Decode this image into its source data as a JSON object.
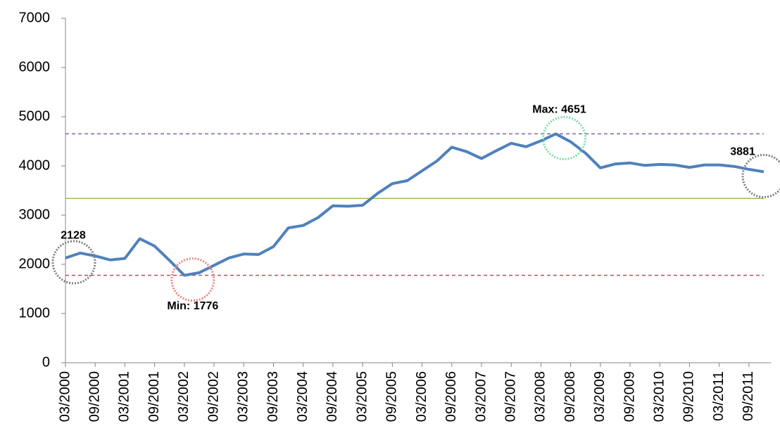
{
  "chart_data": {
    "type": "line",
    "categories": [
      "03/2000",
      null,
      "09/2000",
      null,
      "03/2001",
      null,
      "09/2001",
      null,
      "03/2002",
      null,
      "09/2002",
      null,
      "03/2003",
      null,
      "09/2003",
      null,
      "03/2004",
      null,
      "09/2004",
      null,
      "03/2005",
      null,
      "09/2005",
      null,
      "03/2006",
      null,
      "09/2006",
      null,
      "03/2007",
      null,
      "09/2007",
      null,
      "03/2008",
      null,
      "09/2008",
      null,
      "03/2009",
      null,
      "09/2009",
      null,
      "03/2010",
      null,
      "09/2010",
      null,
      "03/2011",
      null,
      "09/2011",
      null
    ],
    "series": [
      {
        "color": "#4f81bd",
        "values": [
          2128,
          2230,
          2170,
          2090,
          2120,
          2520,
          2370,
          2080,
          1776,
          1830,
          1980,
          2130,
          2210,
          2200,
          2360,
          2740,
          2790,
          2950,
          3190,
          3180,
          3200,
          3440,
          3640,
          3700,
          3900,
          4100,
          4380,
          4290,
          4150,
          4310,
          4460,
          4390,
          4510,
          4651,
          4490,
          4260,
          3960,
          4040,
          4060,
          4010,
          4030,
          4020,
          3970,
          4020,
          4020,
          3990,
          3930,
          3881
        ],
        "value_labels": [
          "2128",
          null,
          null,
          null,
          null,
          null,
          null,
          null,
          "Min: 1776",
          null,
          null,
          null,
          null,
          null,
          null,
          null,
          null,
          null,
          null,
          null,
          null,
          null,
          null,
          null,
          null,
          null,
          null,
          null,
          null,
          null,
          null,
          null,
          null,
          "Max: 4651",
          null,
          null,
          null,
          null,
          null,
          null,
          null,
          null,
          null,
          null,
          null,
          null,
          null,
          "3881"
        ]
      }
    ],
    "reference_lines": [
      {
        "value": 4651,
        "color": "#8064a2",
        "dashed": true
      },
      {
        "value": 3340,
        "color": "#9bbb59",
        "dashed": false
      },
      {
        "value": 1776,
        "color": "#c0504d",
        "dashed": true
      }
    ],
    "ylim": [
      0,
      7000
    ],
    "yticks": [
      0,
      1000,
      2000,
      3000,
      4000,
      5000,
      6000,
      7000
    ],
    "grid": false
  }
}
